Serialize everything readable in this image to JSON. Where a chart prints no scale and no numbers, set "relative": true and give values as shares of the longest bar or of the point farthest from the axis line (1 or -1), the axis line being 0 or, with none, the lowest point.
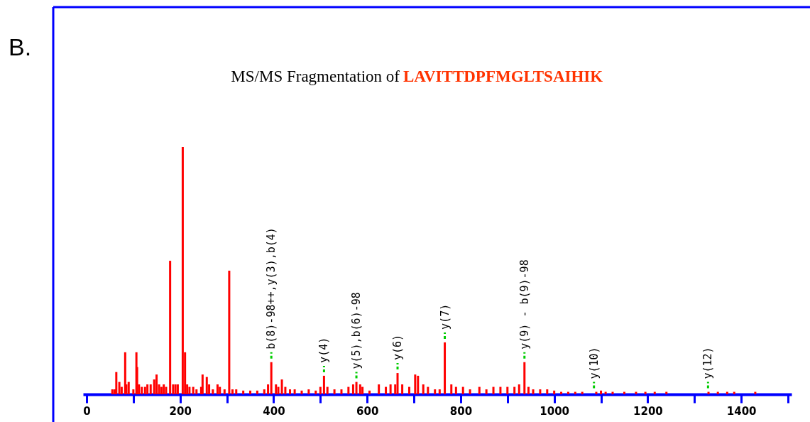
{
  "chart_data": {
    "type": "bar",
    "title": "MS/MS Fragmentation of",
    "subtitle": "LAVITTDPFMGLTSAIHIK",
    "relative": true,
    "color": "#ff0000",
    "x": [
      55,
      60,
      63.5,
      70,
      75,
      82.5,
      85,
      90,
      100,
      106.5,
      108,
      112,
      118,
      125,
      130,
      137,
      144.5,
      149.6,
      155,
      160,
      165,
      170,
      178.6,
      185,
      190,
      195,
      205.6,
      210.5,
      215,
      220,
      228,
      235,
      245,
      248,
      257,
      262,
      270,
      280,
      285,
      295,
      305,
      312,
      320,
      335,
      350,
      365,
      380,
      388,
      395,
      405,
      410,
      417.6,
      425,
      435,
      445,
      460,
      475,
      490,
      500,
      507.7,
      515,
      530,
      545,
      560,
      570,
      577,
      585,
      590,
      605,
      625,
      640,
      650,
      660,
      665,
      675,
      690,
      702.7,
      708.7,
      720,
      730,
      745,
      755,
      766,
      780,
      790,
      805,
      820,
      840,
      855,
      870,
      885,
      900,
      915,
      925,
      936.4,
      945,
      955,
      970,
      985,
      1000,
      1015,
      1030,
      1045,
      1060,
      1090,
      1100,
      1110,
      1125,
      1150,
      1175,
      1195,
      1215,
      1240,
      1330,
      1350,
      1370,
      1385,
      1430
    ],
    "values": [
      0.02,
      0.02,
      0.09,
      0.05,
      0.03,
      0.17,
      0.04,
      0.05,
      0.02,
      0.17,
      0.11,
      0.04,
      0.03,
      0.03,
      0.04,
      0.04,
      0.06,
      0.08,
      0.04,
      0.03,
      0.04,
      0.03,
      0.54,
      0.04,
      0.04,
      0.04,
      1.0,
      0.17,
      0.04,
      0.03,
      0.03,
      0.02,
      0.03,
      0.08,
      0.07,
      0.04,
      0.02,
      0.04,
      0.03,
      0.02,
      0.5,
      0.02,
      0.02,
      0.015,
      0.015,
      0.015,
      0.02,
      0.04,
      0.13,
      0.04,
      0.03,
      0.06,
      0.03,
      0.02,
      0.02,
      0.015,
      0.02,
      0.015,
      0.03,
      0.075,
      0.03,
      0.02,
      0.02,
      0.03,
      0.04,
      0.05,
      0.04,
      0.03,
      0.015,
      0.04,
      0.03,
      0.04,
      0.04,
      0.086,
      0.04,
      0.03,
      0.08,
      0.075,
      0.04,
      0.03,
      0.02,
      0.02,
      0.21,
      0.04,
      0.03,
      0.03,
      0.02,
      0.03,
      0.02,
      0.03,
      0.03,
      0.03,
      0.03,
      0.04,
      0.13,
      0.03,
      0.02,
      0.02,
      0.02,
      0.015,
      0.01,
      0.01,
      0.01,
      0.01,
      0.01,
      0.015,
      0.01,
      0.01,
      0.01,
      0.01,
      0.01,
      0.01,
      0.01,
      0.01,
      0.01,
      0.01,
      0.01,
      0.01
    ],
    "xlim": [
      0,
      1500
    ],
    "xticks": [
      0,
      {
        "value": 100,
        "label": null
      },
      200,
      {
        "value": 300,
        "label": null
      },
      400,
      {
        "value": 500,
        "label": null
      },
      600,
      {
        "value": 700,
        "label": null
      },
      800,
      {
        "value": 900,
        "label": null
      },
      1000,
      {
        "value": 1100,
        "label": null
      },
      1200,
      {
        "value": 1300,
        "label": null
      },
      1400,
      {
        "value": 1500,
        "label": null
      }
    ],
    "tick_labels": "x",
    "grid": false,
    "annotations": [
      "B.",
      {
        "text": "b(8)-98++,y(3),b(4)",
        "x": 395,
        "y": 0.13
      },
      {
        "text": "y(4)",
        "x": 507.7,
        "y": 0.075
      },
      {
        "text": "y(5),b(6)-98",
        "x": 577,
        "y": 0.05
      },
      {
        "text": "y(6)",
        "x": 665,
        "y": 0.086
      },
      {
        "text": "y(7)",
        "x": 766,
        "y": 0.21
      },
      {
        "text": "y(9) - b(9)-98",
        "x": 936.4,
        "y": 0.13
      },
      {
        "text": "y(10)",
        "x": 1085,
        "y": 0.01
      },
      {
        "text": "y(12)",
        "x": 1329,
        "y": 0.01
      }
    ]
  }
}
